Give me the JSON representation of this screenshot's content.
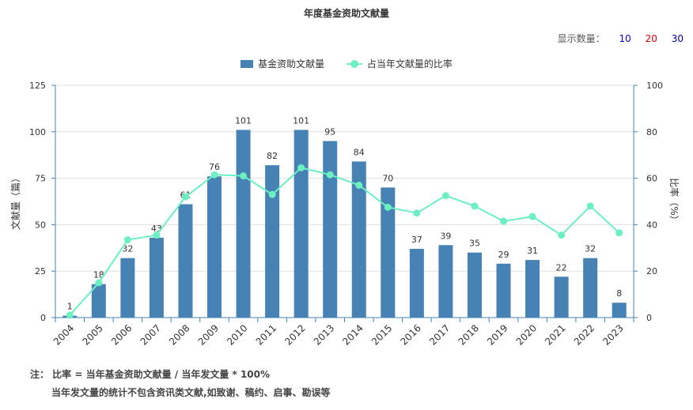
{
  "title": "年度基金资助文献量",
  "show_count": {
    "label": "显示数量：",
    "options": [
      {
        "label": "10",
        "color": "#0000cc"
      },
      {
        "label": "20",
        "color": "#cc0000"
      },
      {
        "label": "30",
        "color": "#000099"
      }
    ]
  },
  "legend": {
    "bar_label": "基金资助文献量",
    "line_label": "占当年文献量的比率"
  },
  "chart_data": {
    "type": "bar",
    "categories": [
      "2004",
      "2005",
      "2006",
      "2007",
      "2008",
      "2009",
      "2010",
      "2011",
      "2012",
      "2013",
      "2014",
      "2015",
      "2016",
      "2017",
      "2018",
      "2019",
      "2020",
      "2021",
      "2022",
      "2023"
    ],
    "series": [
      {
        "name": "基金资助文献量",
        "type": "bar",
        "axis": "left",
        "color": "#4682b4",
        "values": [
          1,
          18,
          32,
          43,
          61,
          76,
          101,
          82,
          101,
          95,
          84,
          70,
          37,
          39,
          35,
          29,
          31,
          22,
          32,
          8
        ]
      },
      {
        "name": "占当年文献量的比率",
        "type": "line",
        "axis": "right",
        "color": "#6cf0c2",
        "values": [
          1,
          15,
          33.5,
          35.5,
          52,
          61.5,
          61,
          53,
          64.5,
          61.5,
          57,
          47.5,
          45,
          52.5,
          48,
          41.5,
          43.5,
          35.5,
          48,
          36.5
        ]
      }
    ],
    "ylabel": "文献量（篇）",
    "y2label": "比率（%）",
    "ylim": [
      0,
      125
    ],
    "yticks": [
      0,
      25,
      50,
      75,
      100,
      125
    ],
    "y2lim": [
      0,
      100
    ],
    "y2ticks": [
      0,
      20,
      40,
      60,
      80,
      100
    ],
    "grid": true,
    "legend_position": "top-center"
  },
  "notes": {
    "line1": "注： 比率 = 当年基金资助文献量 / 当年发文量 * 100%",
    "line2": "当年发文量的统计不包含资讯类文献,如致谢、稿约、启事、勘误等"
  }
}
